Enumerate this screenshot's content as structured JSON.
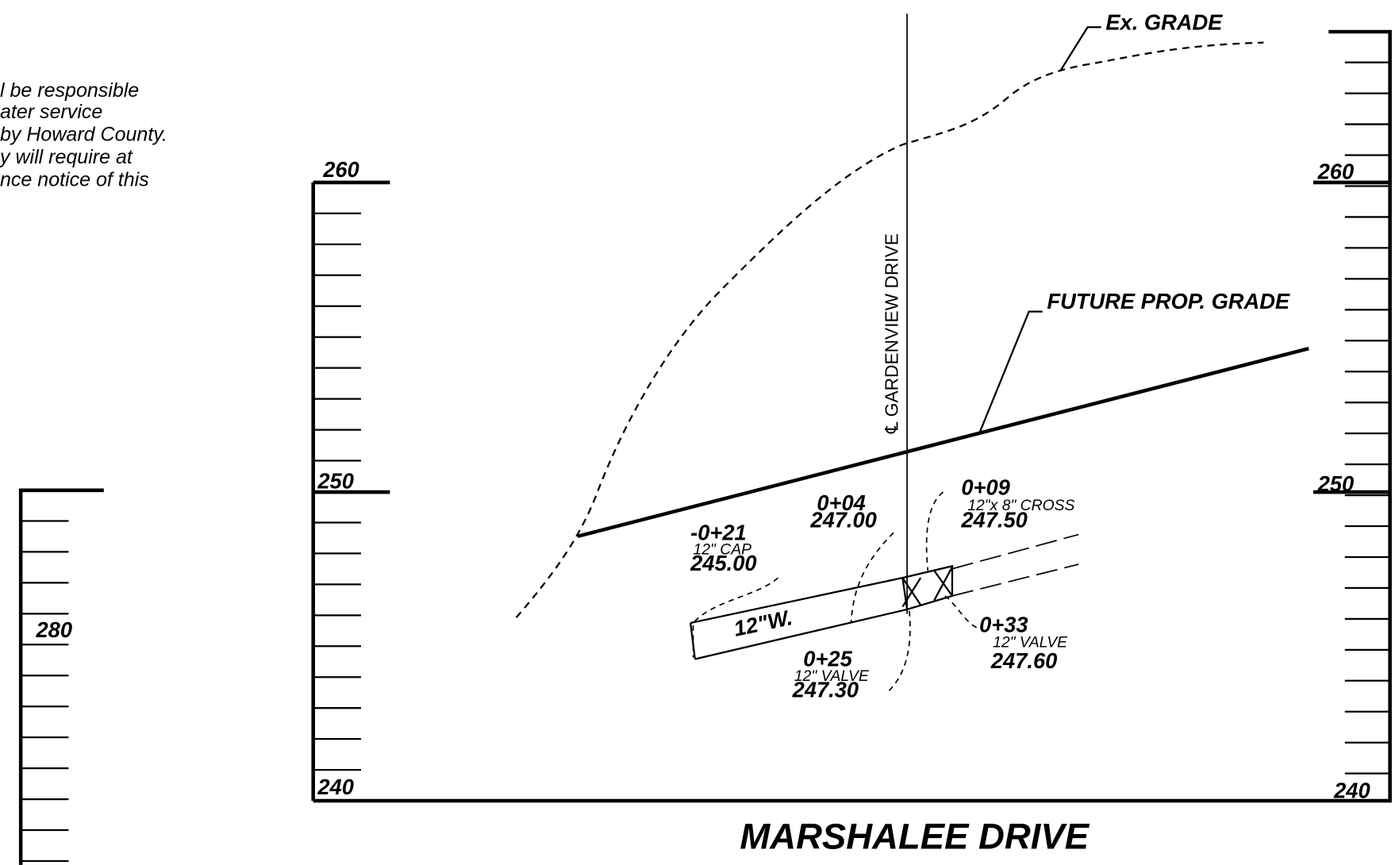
{
  "notes": [
    "l be responsible",
    "ater service",
    "by Howard County.",
    "y will require at",
    "nce notice of this"
  ],
  "left_scale": {
    "label": "280"
  },
  "profile": {
    "left_labels": [
      "260",
      "250",
      "240"
    ],
    "right_labels": [
      "260",
      "250",
      "240"
    ],
    "title": "MARSHALEE DRIVE"
  },
  "annotations": {
    "ex_grade": "Ex. GRADE",
    "future_grade": "FUTURE PROP. GRADE",
    "centerline": "℄ GARDENVIEW DRIVE",
    "pipe": "12\"W.",
    "cap": [
      "-0+21",
      "12\" CAP",
      "245.00"
    ],
    "sta_004": [
      "0+04",
      "247.00"
    ],
    "cross": [
      "0+09",
      "12\"x 8\" CROSS",
      "247.50"
    ],
    "valve_025": [
      "0+25",
      "12\" VALVE",
      "247.30"
    ],
    "valve_033": [
      "0+33",
      "12\" VALVE",
      "247.60"
    ]
  }
}
